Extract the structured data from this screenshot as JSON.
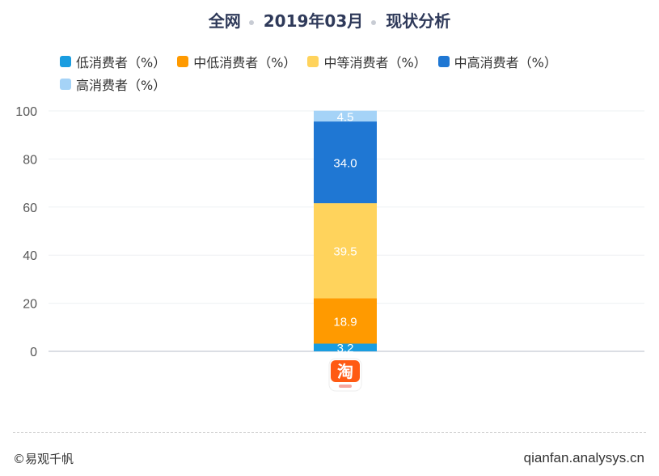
{
  "title": {
    "scope": "全网",
    "date": "2019年03月",
    "topic": "现状分析"
  },
  "footer": {
    "copyright": "©易观千帆",
    "site": "qianfan.analysys.cn"
  },
  "chart_data": {
    "type": "bar",
    "stacked": true,
    "categories": [
      "淘宝"
    ],
    "series": [
      {
        "name": "低消费者（%）",
        "color": "#1a9de0",
        "values": [
          3.2
        ]
      },
      {
        "name": "中低消费者（%）",
        "color": "#ff9a00",
        "values": [
          18.9
        ]
      },
      {
        "name": "中等消费者（%）",
        "color": "#ffd35c",
        "values": [
          39.5
        ]
      },
      {
        "name": "中高消费者（%）",
        "color": "#1f77d3",
        "values": [
          34.0
        ]
      },
      {
        "name": "高消费者（%）",
        "color": "#a5d3f7",
        "values": [
          4.5
        ]
      }
    ],
    "yticks": [
      0,
      20,
      40,
      60,
      80,
      100
    ],
    "ylim": [
      0,
      100
    ],
    "grid": true,
    "legend": "top",
    "category_icon": "taobao-app-icon"
  }
}
